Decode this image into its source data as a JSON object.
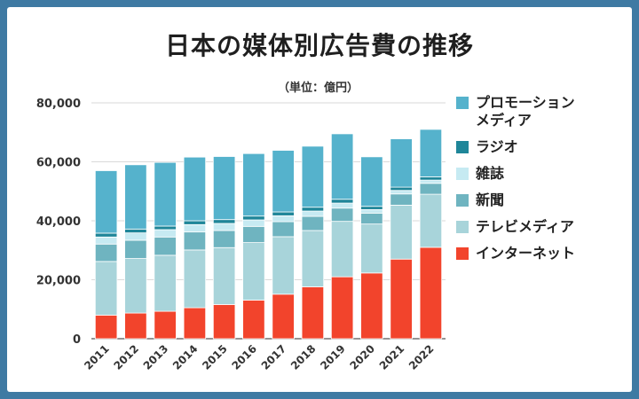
{
  "header": {
    "title": "日本の媒体別広告費の推移",
    "unit": "（単位：億円）"
  },
  "chart_data": {
    "type": "bar",
    "stacked": true,
    "title": "日本の媒体別広告費の推移",
    "unit_label": "（単位：億円）",
    "categories": [
      "2011",
      "2012",
      "2013",
      "2014",
      "2015",
      "2016",
      "2017",
      "2018",
      "2019",
      "2020",
      "2021",
      "2022"
    ],
    "ylim": [
      0,
      80000
    ],
    "yticks": [
      0,
      20000,
      40000,
      60000,
      80000
    ],
    "ytick_labels": [
      "0",
      "20,000",
      "40,000",
      "60,000",
      "80,000"
    ],
    "grid": true,
    "legend_position": "right",
    "series": [
      {
        "name": "インターネット",
        "color": "#f2442c",
        "values": [
          8000,
          8700,
          9300,
          10500,
          11600,
          13100,
          15100,
          17600,
          21000,
          22300,
          27000,
          31000
        ]
      },
      {
        "name": "テレビメディア",
        "color": "#a8d4da",
        "values": [
          18200,
          18500,
          19000,
          19600,
          19300,
          19500,
          19500,
          19100,
          18800,
          16600,
          18300,
          18000
        ]
      },
      {
        "name": "新聞",
        "color": "#6fb4c0",
        "values": [
          5900,
          6200,
          6200,
          6100,
          5800,
          5500,
          5100,
          4800,
          4500,
          3700,
          3800,
          3700
        ]
      },
      {
        "name": "雑誌",
        "color": "#c6eaf2",
        "values": [
          2400,
          2500,
          2500,
          2500,
          2400,
          2200,
          2000,
          1800,
          1700,
          1200,
          1200,
          1100
        ]
      },
      {
        "name": "ラジオ",
        "color": "#1f8699",
        "values": [
          1300,
          1300,
          1200,
          1300,
          1300,
          1300,
          1300,
          1300,
          1300,
          1100,
          1100,
          1100
        ]
      },
      {
        "name": "プロモーションメディア",
        "color": "#55b2cc",
        "values": [
          21200,
          21800,
          21600,
          21600,
          21400,
          21200,
          20900,
          20700,
          22200,
          16800,
          16400,
          16100
        ]
      }
    ]
  },
  "legend": {
    "items": [
      {
        "label": "プロモーション\nメディア",
        "color": "#55b2cc"
      },
      {
        "label": "ラジオ",
        "color": "#1f8699"
      },
      {
        "label": "雑誌",
        "color": "#c6eaf2"
      },
      {
        "label": "新聞",
        "color": "#6fb4c0"
      },
      {
        "label": "テレビメディア",
        "color": "#a8d4da"
      },
      {
        "label": "インターネット",
        "color": "#f2442c"
      }
    ]
  }
}
